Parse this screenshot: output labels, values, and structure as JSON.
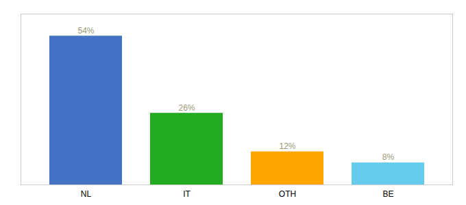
{
  "chart_data": {
    "type": "bar",
    "categories": [
      "NL",
      "IT",
      "OTH",
      "BE"
    ],
    "values": [
      54,
      26,
      12,
      8
    ],
    "value_labels": [
      "54%",
      "26%",
      "12%",
      "8%"
    ],
    "colors": [
      "#4472C4",
      "#22AA22",
      "#FFA500",
      "#66CCEE"
    ],
    "ylim": [
      0,
      62
    ],
    "data_labels": true,
    "tick_labels": "x",
    "grid": false
  }
}
